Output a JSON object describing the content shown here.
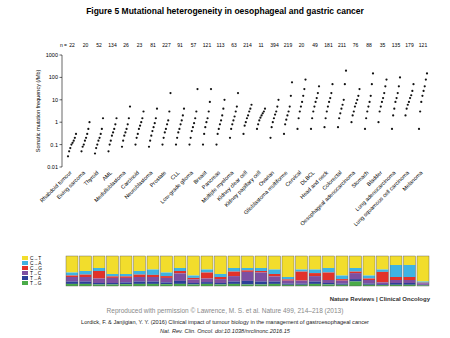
{
  "chart_data": {
    "type": "scatter",
    "title": "Figure 5 Mutational heterogeneity in oesophageal and gastric cancer",
    "y_label": "Somatic mutation frequency (/Mb)",
    "log": "y",
    "ylim": [
      0.01,
      1000
    ],
    "yticks": [
      0.01,
      0.1,
      1,
      10,
      100,
      1000
    ],
    "n_label": "n =",
    "n": [
      22,
      20,
      52,
      134,
      26,
      23,
      81,
      227,
      91,
      57,
      121,
      113,
      63,
      214,
      11,
      394,
      219,
      20,
      49,
      181,
      211,
      76,
      88,
      35,
      135,
      179,
      121
    ],
    "categories": [
      "Rhabdoid tumour",
      "Ewing sarcoma",
      "Thyroid",
      "AML",
      "Medulloblastoma",
      "Carcinoid",
      "Neuroblastoma",
      "Prostate",
      "CLL",
      "Low-grade glioma",
      "Breast",
      "Pancreas",
      "Multiple myeloma",
      "Kidney clear cell",
      "Kidney papillary cell",
      "Ovarian",
      "Glioblastoma multiforme",
      "Cervical",
      "DLBCL",
      "Head and neck",
      "Colorectal",
      "Oesophageal adenocarcinoma",
      "Stomach",
      "Bladder",
      "Lung adenocarcinoma",
      "Lung squamous cell carcinoma",
      "Melanoma"
    ],
    "color": "#111111",
    "values": [
      [
        0.03,
        0.05,
        0.07,
        0.1,
        0.12,
        0.15,
        0.2,
        0.3
      ],
      [
        0.05,
        0.08,
        0.1,
        0.15,
        0.2,
        0.3,
        0.5,
        1
      ],
      [
        0.04,
        0.07,
        0.1,
        0.15,
        0.2,
        0.3,
        0.5,
        1.5
      ],
      [
        0.05,
        0.1,
        0.15,
        0.25,
        0.35,
        0.5,
        0.8,
        1.5
      ],
      [
        0.08,
        0.15,
        0.25,
        0.35,
        0.5,
        0.8,
        1.5,
        5
      ],
      [
        0.1,
        0.2,
        0.3,
        0.5,
        0.7,
        1,
        1.5,
        3
      ],
      [
        0.08,
        0.15,
        0.25,
        0.4,
        0.6,
        0.9,
        1.5,
        4
      ],
      [
        0.1,
        0.2,
        0.35,
        0.5,
        0.8,
        1.2,
        3,
        20
      ],
      [
        0.1,
        0.2,
        0.35,
        0.5,
        0.8,
        1.2,
        2,
        4
      ],
      [
        0.1,
        0.2,
        0.4,
        0.6,
        0.9,
        1.5,
        3,
        30
      ],
      [
        0.1,
        0.3,
        0.6,
        1,
        1.5,
        3,
        8,
        30
      ],
      [
        0.1,
        0.3,
        0.5,
        0.8,
        1.2,
        2,
        4,
        10
      ],
      [
        0.2,
        0.5,
        0.8,
        1.2,
        1.8,
        3,
        5,
        20
      ],
      [
        0.3,
        0.7,
        1,
        1.5,
        2,
        3,
        4,
        6
      ],
      [
        0.5,
        0.8,
        1.2,
        1.6,
        2,
        2.5,
        3,
        4
      ],
      [
        0.2,
        0.6,
        1,
        1.5,
        2.2,
        3,
        5,
        10
      ],
      [
        0.3,
        0.8,
        1.3,
        2,
        3,
        5,
        15,
        60
      ],
      [
        0.5,
        1.5,
        3,
        5,
        8,
        15,
        30,
        80
      ],
      [
        0.5,
        1.5,
        3,
        5,
        8,
        12,
        20,
        40
      ],
      [
        0.6,
        1.5,
        3,
        5,
        8,
        12,
        20,
        50
      ],
      [
        0.6,
        1.5,
        2.5,
        4,
        6,
        10,
        50,
        200
      ],
      [
        1,
        2,
        3,
        5,
        7,
        10,
        15,
        30
      ],
      [
        0.5,
        1.5,
        3,
        5,
        8,
        15,
        50,
        150
      ],
      [
        1,
        3,
        5,
        8,
        12,
        20,
        40,
        80
      ],
      [
        0.5,
        2,
        4,
        8,
        12,
        20,
        40,
        100
      ],
      [
        2,
        4,
        6,
        8,
        12,
        16,
        25,
        50
      ],
      [
        0.5,
        3,
        8,
        15,
        25,
        40,
        80,
        150
      ]
    ],
    "spectrum": {
      "types": [
        "C→T",
        "C→A",
        "C→G",
        "T→C",
        "T→A",
        "T→G"
      ],
      "colors": [
        "#f2dd2c",
        "#3fb3e3",
        "#e2322a",
        "#7d4fa1",
        "#2b3f98",
        "#4aab48"
      ],
      "fractions": [
        [
          55,
          10,
          5,
          15,
          8,
          7
        ],
        [
          50,
          12,
          8,
          15,
          8,
          7
        ],
        [
          40,
          10,
          25,
          15,
          5,
          5
        ],
        [
          60,
          8,
          5,
          17,
          5,
          5
        ],
        [
          60,
          8,
          5,
          15,
          6,
          6
        ],
        [
          50,
          12,
          8,
          15,
          8,
          7
        ],
        [
          45,
          18,
          7,
          15,
          8,
          7
        ],
        [
          55,
          12,
          6,
          15,
          6,
          6
        ],
        [
          40,
          10,
          8,
          25,
          10,
          7
        ],
        [
          65,
          8,
          5,
          12,
          5,
          5
        ],
        [
          45,
          10,
          20,
          12,
          6,
          7
        ],
        [
          60,
          10,
          7,
          13,
          5,
          5
        ],
        [
          40,
          12,
          15,
          18,
          8,
          7
        ],
        [
          40,
          8,
          5,
          30,
          12,
          5
        ],
        [
          40,
          10,
          5,
          30,
          10,
          5
        ],
        [
          45,
          15,
          8,
          17,
          8,
          7
        ],
        [
          70,
          8,
          4,
          10,
          4,
          4
        ],
        [
          45,
          7,
          30,
          10,
          4,
          4
        ],
        [
          45,
          12,
          10,
          18,
          8,
          7
        ],
        [
          40,
          15,
          25,
          10,
          5,
          5
        ],
        [
          65,
          12,
          5,
          10,
          4,
          4
        ],
        [
          40,
          12,
          5,
          20,
          8,
          15
        ],
        [
          65,
          10,
          5,
          12,
          4,
          4
        ],
        [
          45,
          8,
          35,
          6,
          3,
          3
        ],
        [
          30,
          40,
          10,
          10,
          6,
          4
        ],
        [
          30,
          40,
          10,
          10,
          6,
          4
        ],
        [
          85,
          4,
          2,
          5,
          2,
          2
        ]
      ]
    },
    "publisher": "Nature Reviews | Clinical Oncology",
    "credit": "Reproduced with permission © Lawrence, M. S. et al. Nature 499, 214–218 (2013)",
    "citation": "Lordick, F. & Janjigian, Y. Y. (2016) Clinical impact of tumour biology in the management of gastroesophageal cancer",
    "citation_journal": "Nat. Rev. Clin. Oncol. doi:10.1038/nrclinonc.2016.15"
  }
}
